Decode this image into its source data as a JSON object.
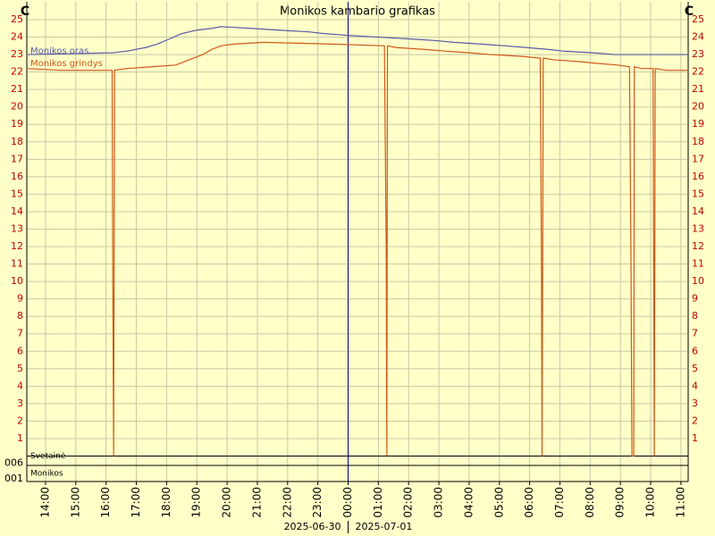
{
  "chart_data": {
    "type": "line",
    "title": "Monikos kambario grafikas",
    "y_unit": "C",
    "xlim": [
      13.38,
      35.24
    ],
    "ylim": [
      0,
      25
    ],
    "xticks": [
      {
        "value": 14,
        "label": "14:00"
      },
      {
        "value": 15,
        "label": "15:00"
      },
      {
        "value": 16,
        "label": "16:00"
      },
      {
        "value": 17,
        "label": "17:00"
      },
      {
        "value": 18,
        "label": "18:00"
      },
      {
        "value": 19,
        "label": "19:00"
      },
      {
        "value": 20,
        "label": "20:00"
      },
      {
        "value": 21,
        "label": "21:00"
      },
      {
        "value": 22,
        "label": "22:00"
      },
      {
        "value": 23,
        "label": "23:00"
      },
      {
        "value": 24,
        "label": "00:00"
      },
      {
        "value": 25,
        "label": "01:00"
      },
      {
        "value": 26,
        "label": "02:00"
      },
      {
        "value": 27,
        "label": "03:00"
      },
      {
        "value": 28,
        "label": "04:00"
      },
      {
        "value": 29,
        "label": "05:00"
      },
      {
        "value": 30,
        "label": "06:00"
      },
      {
        "value": 31,
        "label": "07:00"
      },
      {
        "value": 32,
        "label": "08:00"
      },
      {
        "value": 33,
        "label": "09:00"
      },
      {
        "value": 34,
        "label": "10:00"
      },
      {
        "value": 35,
        "label": "11:00"
      }
    ],
    "yticks": [
      1,
      2,
      3,
      4,
      5,
      6,
      7,
      8,
      9,
      10,
      11,
      12,
      13,
      14,
      15,
      16,
      17,
      18,
      19,
      20,
      21,
      22,
      23,
      24,
      25
    ],
    "grid": true,
    "date_boundary": 24,
    "dates": [
      "2025-06-30",
      "2025-07-01"
    ],
    "series": [
      {
        "name": "Monikos oras",
        "color": "#5858a8",
        "x": [
          13.38,
          16.2,
          16.7,
          17.3,
          17.7,
          18.1,
          18.5,
          19.0,
          19.5,
          19.8,
          20.8,
          21.7,
          22.7,
          23.2,
          24.0,
          25.0,
          26.0,
          26.9,
          27.5,
          28.4,
          29.2,
          29.9,
          30.6,
          31.1,
          32.1,
          32.8,
          35.24
        ],
        "values": [
          23.0,
          23.1,
          23.2,
          23.4,
          23.6,
          23.9,
          24.2,
          24.4,
          24.5,
          24.6,
          24.5,
          24.4,
          24.3,
          24.2,
          24.1,
          24.0,
          23.9,
          23.8,
          23.7,
          23.6,
          23.5,
          23.4,
          23.3,
          23.2,
          23.1,
          23.0,
          23.0
        ]
      },
      {
        "name": "Monikos grindys",
        "color": "#d05818",
        "x": [
          13.38,
          14.5,
          16.2,
          16.22,
          16.25,
          16.28,
          16.7,
          17.5,
          18.3,
          18.6,
          18.9,
          19.2,
          19.5,
          19.8,
          20.2,
          21.2,
          23.5,
          25.2,
          25.26,
          25.28,
          25.3,
          25.6,
          26.5,
          27.2,
          28.0,
          28.7,
          29.7,
          30.35,
          30.39,
          30.41,
          30.45,
          30.8,
          31.6,
          32.2,
          32.9,
          33.3,
          33.35,
          33.38,
          33.44,
          33.46,
          33.7,
          34.08,
          34.1,
          34.12,
          34.15,
          34.5,
          35.24
        ],
        "values": [
          22.2,
          22.1,
          22.1,
          11.3,
          0,
          22.1,
          22.2,
          22.3,
          22.4,
          22.6,
          22.8,
          23.0,
          23.3,
          23.5,
          23.6,
          23.7,
          23.6,
          23.5,
          11.8,
          0,
          23.5,
          23.4,
          23.3,
          23.2,
          23.1,
          23.0,
          22.9,
          22.8,
          11.4,
          0,
          22.8,
          22.7,
          22.6,
          22.5,
          22.4,
          22.3,
          11.2,
          0,
          0,
          22.3,
          22.2,
          22.2,
          11.2,
          0,
          22.2,
          22.1,
          22.1
        ]
      }
    ],
    "sections": [
      {
        "label": "Svetainė",
        "id": "006"
      },
      {
        "label": "Monikos",
        "id": "001"
      }
    ]
  }
}
